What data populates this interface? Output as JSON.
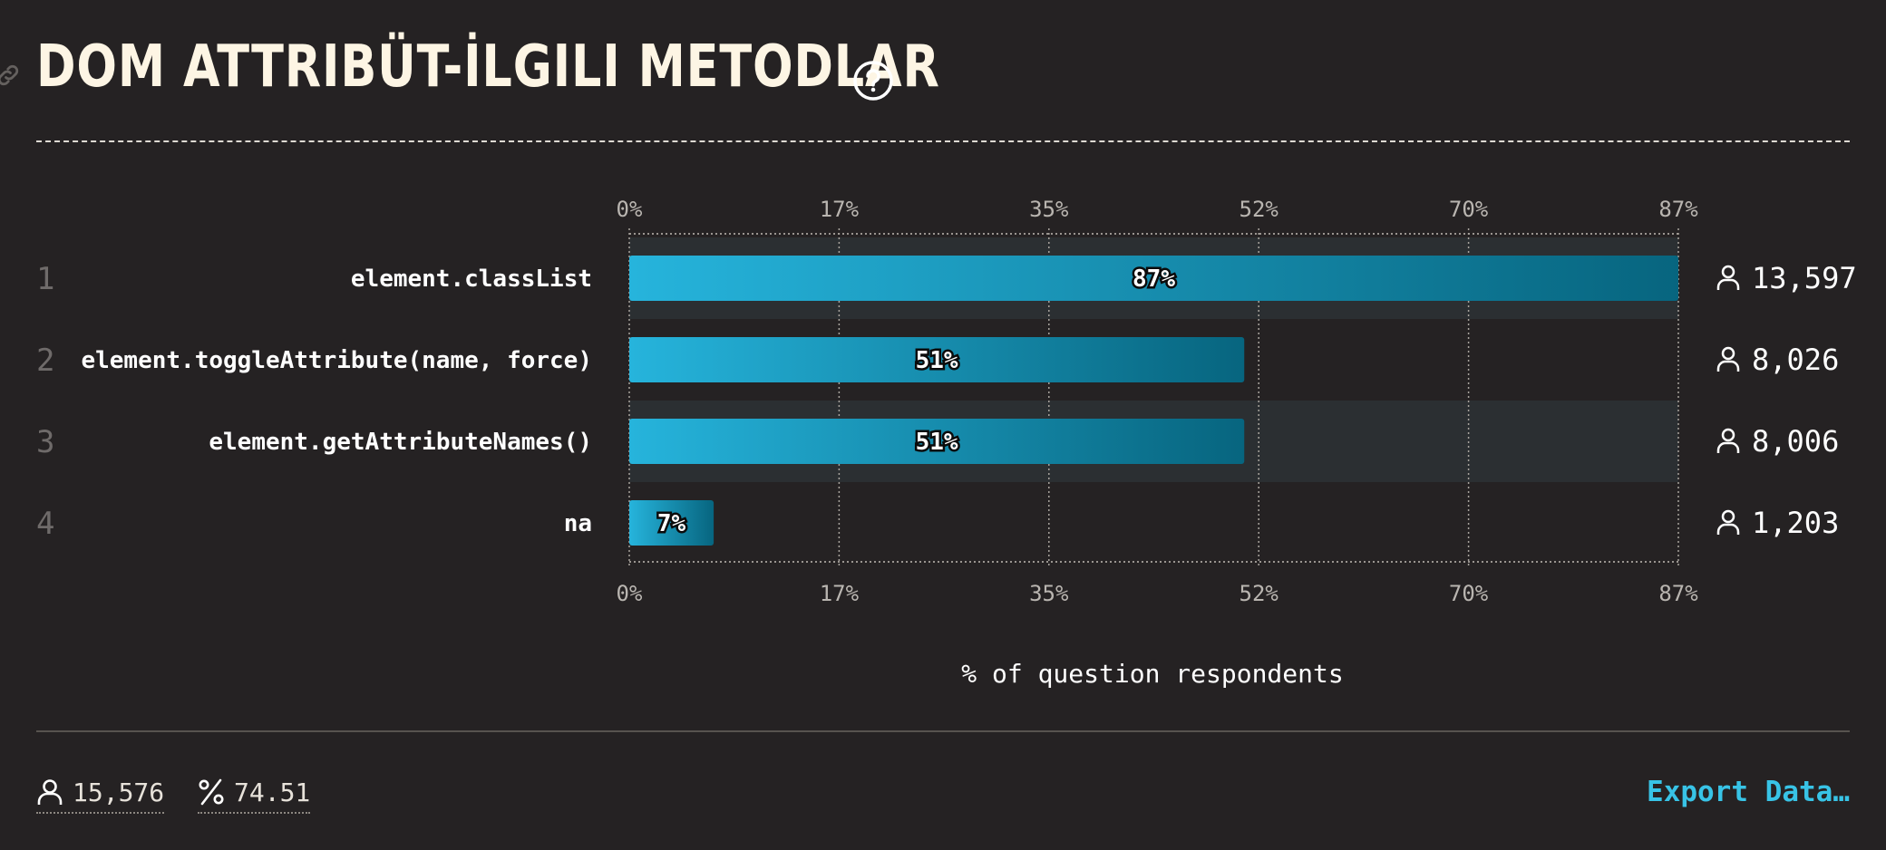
{
  "header": {
    "title": "DOM ATTRIBÜT-İLGILI METODLAR"
  },
  "icons": {
    "link": "link-icon",
    "help": "question-circle-icon",
    "respondent": "user-icon",
    "percent": "percent-icon"
  },
  "colors": {
    "background": "#252223",
    "bar_start": "#26b4dc",
    "bar_end": "#07657f",
    "accent": "#38c3e6",
    "row_stripe": "#2b2f32"
  },
  "chart_data": {
    "type": "bar",
    "orientation": "horizontal",
    "categories": [
      "element.classList",
      "element.toggleAttribute(name, force)",
      "element.getAttributeNames()",
      "na"
    ],
    "ranks": [
      "1",
      "2",
      "3",
      "4"
    ],
    "values": [
      87,
      51,
      51,
      7
    ],
    "value_labels": [
      "87%",
      "51%",
      "51%",
      "7%"
    ],
    "counts": [
      "13,597",
      "8,026",
      "8,006",
      "1,203"
    ],
    "xticks": [
      "0%",
      "17%",
      "35%",
      "52%",
      "70%",
      "87%"
    ],
    "xtick_values": [
      0,
      17.4,
      34.8,
      52.2,
      69.6,
      87
    ],
    "xlim": [
      0,
      87
    ],
    "xlabel": "% of question respondents",
    "grid": true
  },
  "footer": {
    "total_respondents": "15,576",
    "completion_percent": "74.51",
    "export_label": "Export Data…"
  }
}
